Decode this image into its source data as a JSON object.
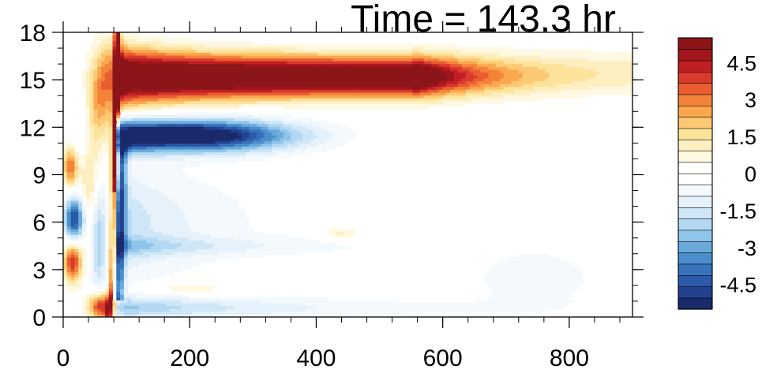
{
  "chart_data": {
    "type": "heatmap",
    "title": "Time = 143.3 hr",
    "xlabel": "",
    "ylabel": "",
    "xlim": [
      0,
      900
    ],
    "ylim": [
      0,
      18
    ],
    "x_ticks": [
      "0",
      "200",
      "400",
      "600",
      "800"
    ],
    "y_ticks": [
      "0",
      "3",
      "6",
      "9",
      "12",
      "15",
      "18"
    ],
    "x_tick_values": [
      0,
      200,
      400,
      600,
      800
    ],
    "y_tick_values": [
      0,
      3,
      6,
      9,
      12,
      15,
      18
    ],
    "colorbar": {
      "labels": [
        "4.5",
        "3",
        "1.5",
        "0",
        "-1.5",
        "-3",
        "-4.5"
      ],
      "label_values": [
        4.5,
        3,
        1.5,
        0,
        -1.5,
        -3,
        -4.5
      ],
      "levels": [
        -5.5,
        -5,
        -4.5,
        -4,
        -3.5,
        -3,
        -2.5,
        -2,
        -1.5,
        -1,
        -0.5,
        0,
        0.5,
        1,
        1.5,
        2,
        2.5,
        3,
        3.5,
        4,
        4.5,
        5,
        5.5
      ],
      "colors": [
        "#1b2a6b",
        "#22418e",
        "#2b5aa8",
        "#3673bc",
        "#4a8fcc",
        "#6aaadb",
        "#8ec5ea",
        "#b2d8f2",
        "#cfe6f7",
        "#e6f2fb",
        "#f3f9fd",
        "#ffffff",
        "#ffffff",
        "#fff8e2",
        "#fdefc0",
        "#fde29a",
        "#fcc873",
        "#faa750",
        "#f4833a",
        "#ea5d30",
        "#d93a2c",
        "#c01f23",
        "#a1161d",
        "#8b1519"
      ],
      "range": [
        -5.5,
        5.5
      ]
    },
    "features": [
      {
        "kind": "positive band",
        "x_start": 85,
        "x_end": 900,
        "y_center": 15.2,
        "peak": 6,
        "description": "strong positive band near y≈15, decaying beyond x≈650"
      },
      {
        "kind": "negative band",
        "x_start": 85,
        "x_end": 420,
        "y_center": 11.5,
        "peak": -6
      },
      {
        "kind": "negative band",
        "x_start": 100,
        "x_end": 700,
        "y_center": 0.6,
        "peak": -2.5
      },
      {
        "kind": "positive blob",
        "x": 12,
        "y": 9.5,
        "peak": 3.5
      },
      {
        "kind": "negative blob",
        "x": 18,
        "y": 6.2,
        "peak": -5
      },
      {
        "kind": "positive blob",
        "x": 15,
        "y": 3.5,
        "peak": 4
      },
      {
        "kind": "positive blob",
        "x": 55,
        "y": 0.7,
        "peak": 4.5
      }
    ]
  }
}
